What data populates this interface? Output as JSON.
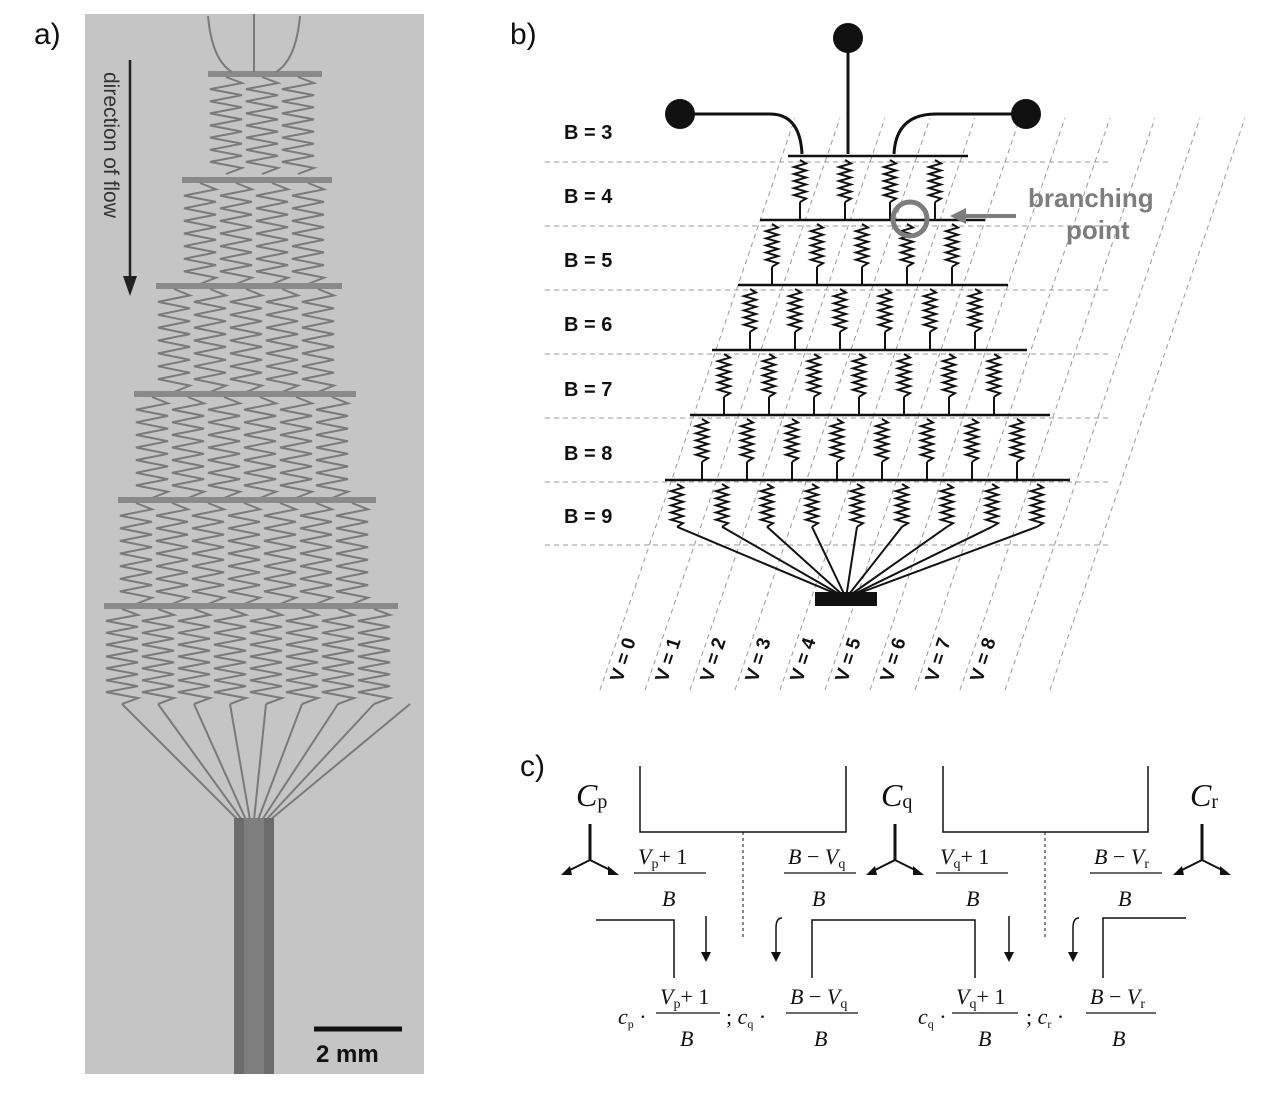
{
  "panel_a": {
    "label": "a)",
    "flow_label": "direction of flow",
    "scale_label": "2 mm"
  },
  "panel_b": {
    "label": "b)",
    "branching_line1": "branching",
    "branching_line2": "point",
    "level_labels": [
      "B = 3",
      "B = 4",
      "B = 5",
      "B = 6",
      "B = 7",
      "B = 8",
      "B = 9"
    ],
    "v_labels": [
      "V = 0",
      "V = 1",
      "V = 2",
      "V = 3",
      "V = 4",
      "V = 5",
      "V = 6",
      "V = 7",
      "V = 8"
    ]
  },
  "panel_c": {
    "label": "c)",
    "cp_sub": "p",
    "cq_sub": "q",
    "cr_sub": "r"
  }
}
